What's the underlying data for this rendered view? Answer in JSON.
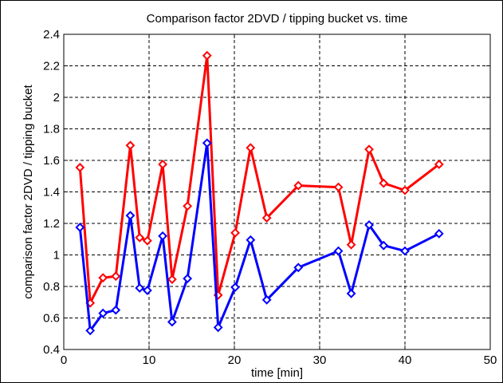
{
  "chart_data": {
    "type": "line",
    "title": "Comparison factor 2DVD / tipping bucket vs. time",
    "xlabel": "time [min]",
    "ylabel": "comparison factor 2DVD / tipping bucket",
    "xlim": [
      0,
      50
    ],
    "ylim": [
      0.4,
      2.4
    ],
    "grid": true,
    "marker": "diamond",
    "x_ticks": [
      "0",
      "10",
      "20",
      "30",
      "40",
      "50"
    ],
    "y_ticks": [
      "0.4",
      "0.6",
      "0.8",
      "1",
      "1.2",
      "1.4",
      "1.6",
      "1.8",
      "2",
      "2.2",
      "2.4"
    ],
    "series": [
      {
        "color": "#ff0000",
        "points": [
          [
            1.9,
            1.555
          ],
          [
            3.1,
            0.695
          ],
          [
            4.6,
            0.855
          ],
          [
            6.1,
            0.865
          ],
          [
            7.8,
            1.695
          ],
          [
            8.9,
            1.11
          ],
          [
            9.8,
            1.09
          ],
          [
            11.6,
            1.575
          ],
          [
            12.7,
            0.845
          ],
          [
            14.5,
            1.31
          ],
          [
            16.8,
            2.265
          ],
          [
            18.1,
            0.745
          ],
          [
            20.1,
            1.14
          ],
          [
            21.9,
            1.68
          ],
          [
            23.8,
            1.235
          ],
          [
            27.5,
            1.44
          ],
          [
            32.2,
            1.43
          ],
          [
            33.7,
            1.065
          ],
          [
            35.8,
            1.67
          ],
          [
            37.5,
            1.455
          ],
          [
            40.0,
            1.41
          ],
          [
            44.0,
            1.575
          ]
        ]
      },
      {
        "color": "#0000ff",
        "points": [
          [
            1.9,
            1.175
          ],
          [
            3.1,
            0.52
          ],
          [
            4.6,
            0.63
          ],
          [
            6.1,
            0.65
          ],
          [
            7.8,
            1.25
          ],
          [
            8.9,
            0.79
          ],
          [
            9.8,
            0.775
          ],
          [
            11.6,
            1.12
          ],
          [
            12.7,
            0.575
          ],
          [
            14.5,
            0.85
          ],
          [
            16.8,
            1.71
          ],
          [
            18.1,
            0.54
          ],
          [
            20.1,
            0.795
          ],
          [
            21.9,
            1.095
          ],
          [
            23.8,
            0.715
          ],
          [
            27.5,
            0.92
          ],
          [
            32.2,
            1.025
          ],
          [
            33.7,
            0.755
          ],
          [
            35.8,
            1.19
          ],
          [
            37.5,
            1.06
          ],
          [
            40.0,
            1.025
          ],
          [
            44.0,
            1.135
          ]
        ]
      }
    ]
  }
}
